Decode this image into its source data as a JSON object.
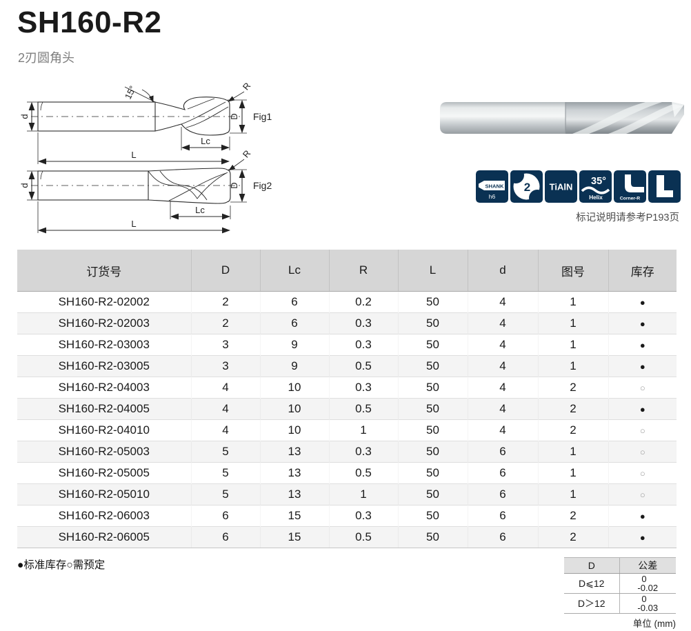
{
  "page": {
    "title": "SH160-R2",
    "subtitle": "2刃圆角头"
  },
  "diagram": {
    "fig1_label": "Fig1",
    "fig2_label": "Fig2",
    "labels": {
      "angle": "15°",
      "radius": "R",
      "shank_dia": "d",
      "cut_dia": "D",
      "flute_len": "Lc",
      "overall_len": "L"
    }
  },
  "badges": {
    "color": "#0a3153",
    "note": "标记说明请参考P193页",
    "shank": {
      "line1": "SHANK",
      "line2": "h6"
    },
    "flutes": {
      "count": "2"
    },
    "coating": {
      "label": "TiAlN"
    },
    "helix": {
      "angle": "35°",
      "label": "Helix"
    },
    "corner": {
      "label": "Corner-R"
    },
    "type_l": {
      "label": "L"
    }
  },
  "table": {
    "headers": [
      "订货号",
      "D",
      "Lc",
      "R",
      "L",
      "d",
      "图号",
      "库存"
    ],
    "stock_symbols": {
      "in_stock": "●",
      "on_order": "○"
    },
    "rows": [
      [
        "SH160-R2-02002",
        "2",
        "6",
        "0.2",
        "50",
        "4",
        "1",
        "●"
      ],
      [
        "SH160-R2-02003",
        "2",
        "6",
        "0.3",
        "50",
        "4",
        "1",
        "●"
      ],
      [
        "SH160-R2-03003",
        "3",
        "9",
        "0.3",
        "50",
        "4",
        "1",
        "●"
      ],
      [
        "SH160-R2-03005",
        "3",
        "9",
        "0.5",
        "50",
        "4",
        "1",
        "●"
      ],
      [
        "SH160-R2-04003",
        "4",
        "10",
        "0.3",
        "50",
        "4",
        "2",
        "○"
      ],
      [
        "SH160-R2-04005",
        "4",
        "10",
        "0.5",
        "50",
        "4",
        "2",
        "●"
      ],
      [
        "SH160-R2-04010",
        "4",
        "10",
        "1",
        "50",
        "4",
        "2",
        "○"
      ],
      [
        "SH160-R2-05003",
        "5",
        "13",
        "0.3",
        "50",
        "6",
        "1",
        "○"
      ],
      [
        "SH160-R2-05005",
        "5",
        "13",
        "0.5",
        "50",
        "6",
        "1",
        "○"
      ],
      [
        "SH160-R2-05010",
        "5",
        "13",
        "1",
        "50",
        "6",
        "1",
        "○"
      ],
      [
        "SH160-R2-06003",
        "6",
        "15",
        "0.3",
        "50",
        "6",
        "2",
        "●"
      ],
      [
        "SH160-R2-06005",
        "6",
        "15",
        "0.5",
        "50",
        "6",
        "2",
        "●"
      ]
    ]
  },
  "legend": "●标准库存○需预定",
  "tolerance": {
    "headers": [
      "D",
      "公差"
    ],
    "rows": [
      {
        "d": "D⩽12",
        "upper": "0",
        "lower": "-0.02"
      },
      {
        "d": "D＞12",
        "upper": "0",
        "lower": "-0.03"
      }
    ],
    "unit": "单位 (mm)"
  }
}
